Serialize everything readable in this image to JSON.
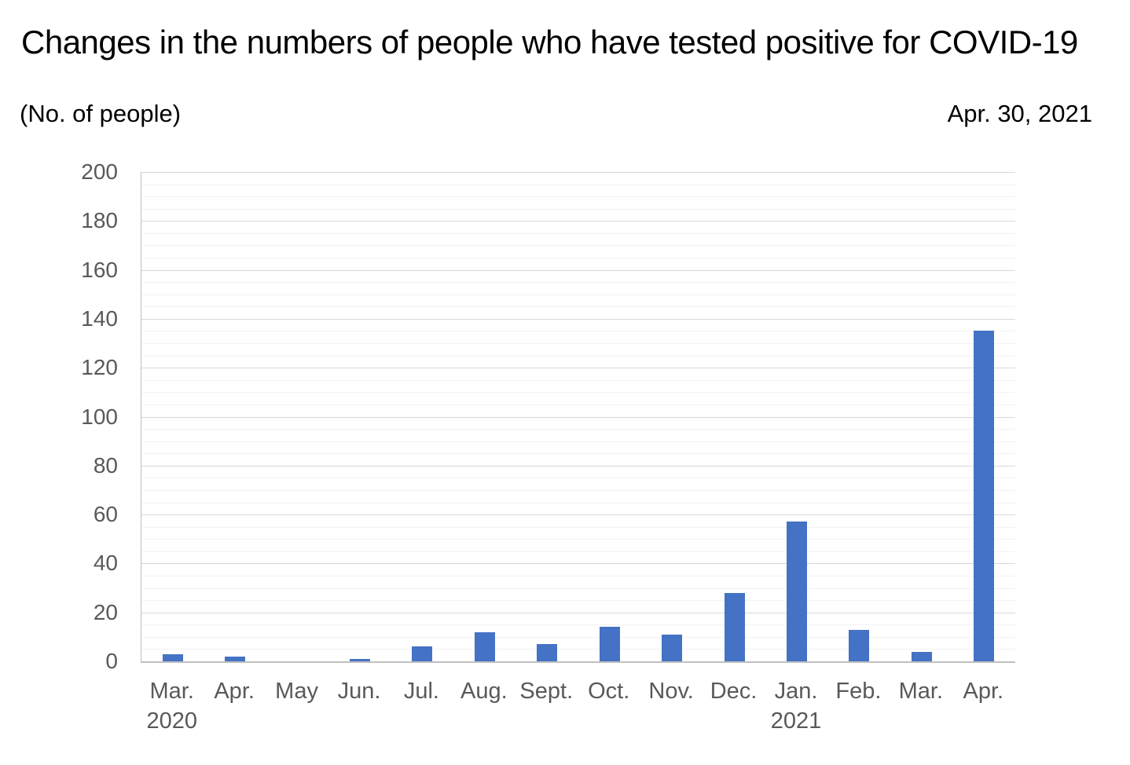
{
  "header": {
    "title": "Changes in the numbers of people who have tested positive for COVID-19",
    "unit_label": "(No. of people)",
    "date_label": "Apr. 30, 2021"
  },
  "chart_data": {
    "type": "bar",
    "title": "Changes in the numbers of people who have tested positive for COVID-19",
    "xlabel": "",
    "ylabel": "(No. of people)",
    "annotation": "Apr. 30, 2021",
    "categories": [
      "Mar.",
      "Apr.",
      "May",
      "Jun.",
      "Jul.",
      "Aug.",
      "Sept.",
      "Oct.",
      "Nov.",
      "Dec.",
      "Jan.",
      "Feb.",
      "Mar.",
      "Apr."
    ],
    "year_labels": [
      {
        "index": 0,
        "label": "2020"
      },
      {
        "index": 10,
        "label": "2021"
      }
    ],
    "values": [
      3,
      2,
      0,
      1,
      6,
      12,
      7,
      14,
      11,
      28,
      57,
      13,
      4,
      135
    ],
    "ylim": [
      0,
      200
    ],
    "y_major_step": 20,
    "y_minor_step": 5,
    "y_tick_labels": [
      "0",
      "20",
      "40",
      "60",
      "80",
      "100",
      "120",
      "140",
      "160",
      "180",
      "200"
    ],
    "grid": true,
    "legend": false,
    "colors": {
      "bar": "#4472c4",
      "major_gridline": "#d9d9d9",
      "minor_gridline": "#f2f2f2",
      "axis_line": "#bfbfbf",
      "tick_label": "#595959",
      "title_text": "#000000"
    }
  }
}
